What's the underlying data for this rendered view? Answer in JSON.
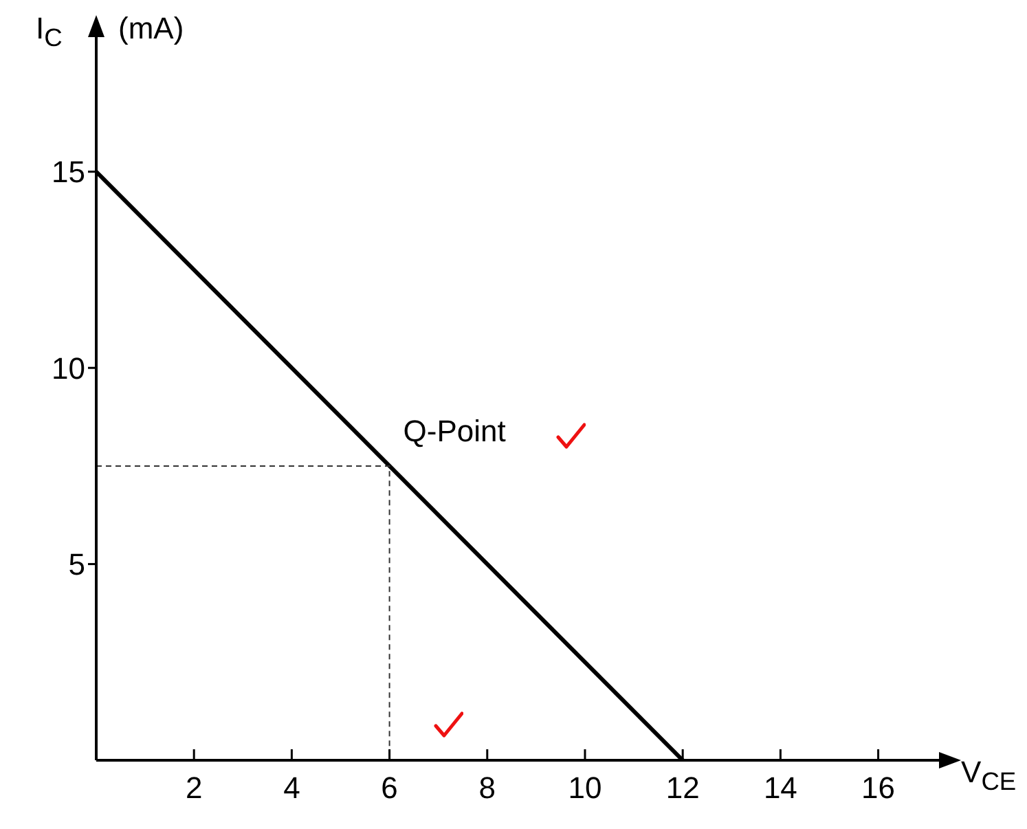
{
  "chart_data": {
    "type": "line",
    "xlabel": "V$_{CE}$",
    "ylabel": "I$_{C}$ (mA)",
    "xlim": [
      0,
      17.3
    ],
    "ylim": [
      0,
      18.5
    ],
    "xticks": [
      2,
      4,
      6,
      8,
      10,
      12,
      14,
      16
    ],
    "yticks": [
      5,
      10,
      15
    ],
    "marker": "none",
    "series": [
      {
        "color": "#000000",
        "x": [
          0,
          12
        ],
        "values": [
          15,
          0
        ],
        "line_style": "solid"
      },
      {
        "color": "#333333",
        "x": [
          0,
          6,
          6
        ],
        "values": [
          7.5,
          7.5,
          0
        ],
        "line_style": "dashed"
      }
    ],
    "annotations": [
      {
        "text": "Q-Point",
        "x": 6,
        "y": 7.5
      }
    ]
  }
}
